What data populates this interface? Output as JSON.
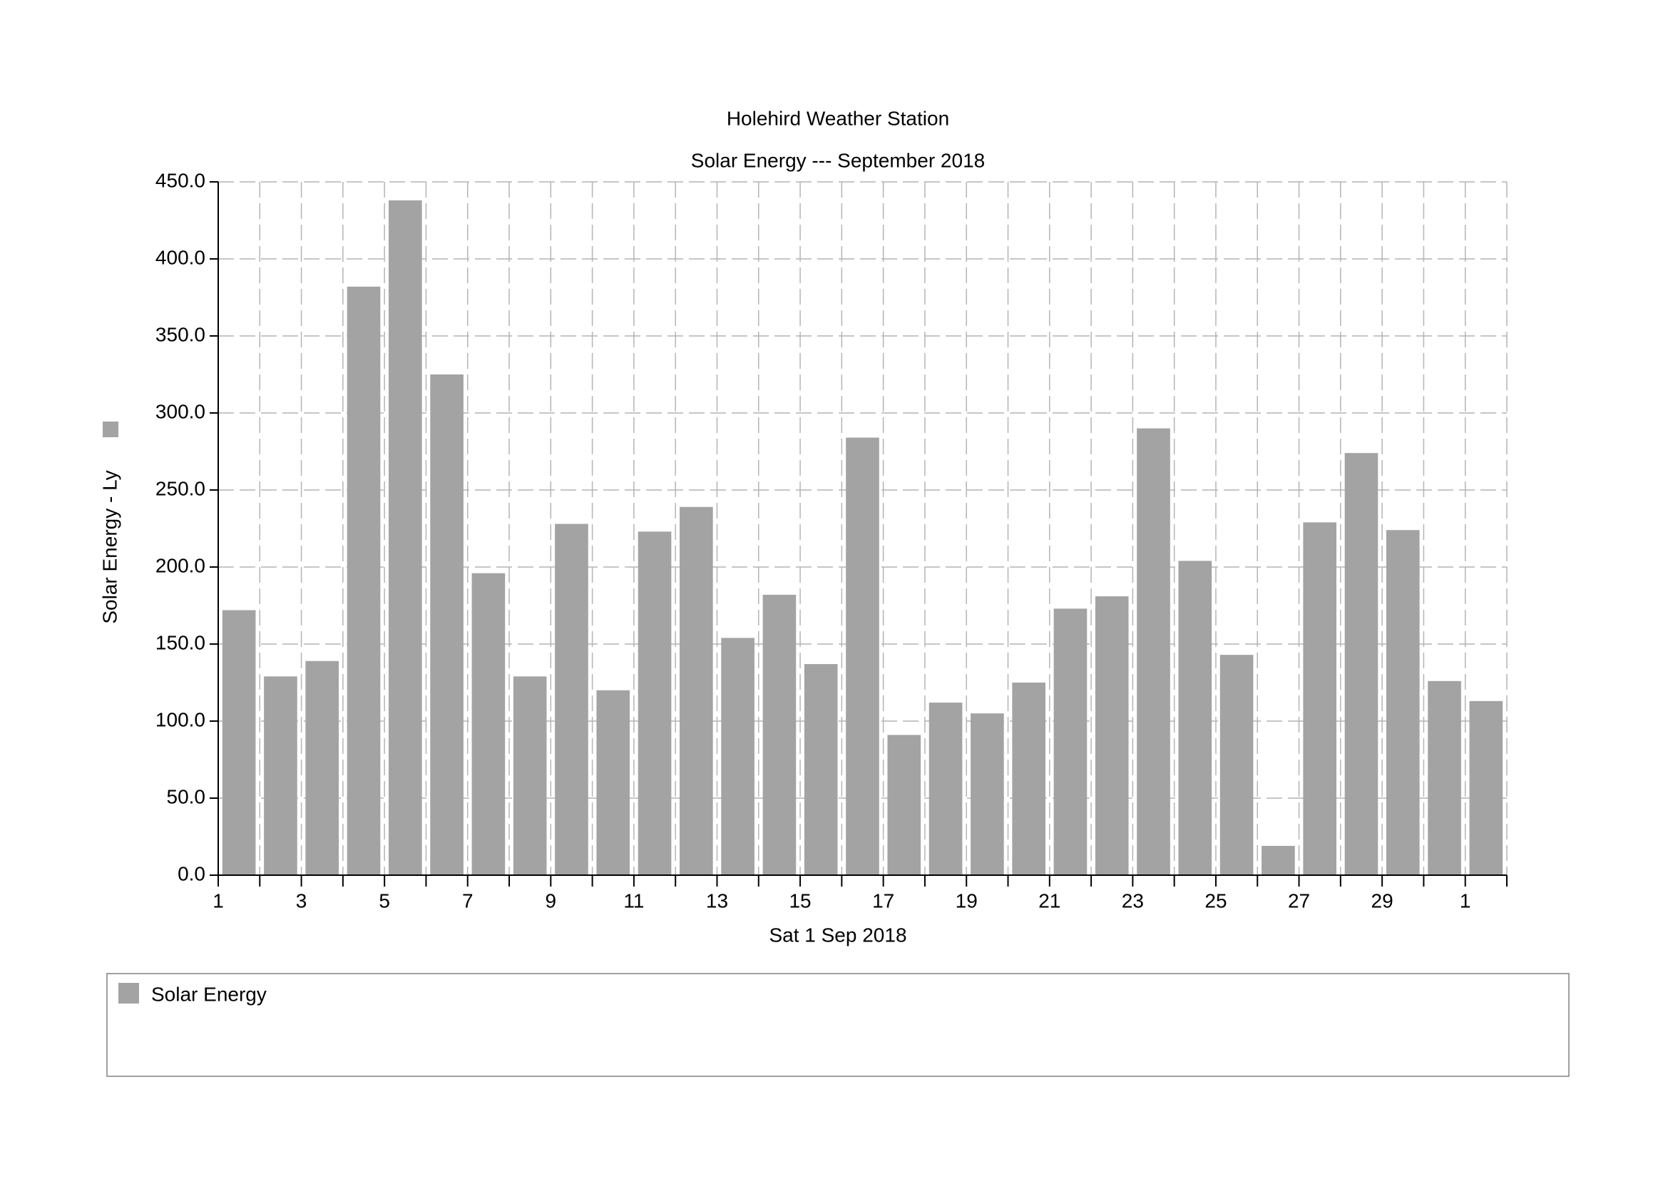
{
  "chart_data": {
    "type": "bar",
    "title": "Holehird Weather Station",
    "subtitle": "Solar Energy --- September 2018",
    "x_label": "Sat 1 Sep 2018",
    "y_label": "Solar Energy - Ly",
    "categories": [
      "1",
      null,
      "3",
      null,
      "5",
      null,
      "7",
      null,
      "9",
      null,
      "11",
      null,
      "13",
      null,
      "15",
      null,
      "17",
      null,
      "19",
      null,
      "21",
      null,
      "23",
      null,
      "25",
      null,
      "27",
      null,
      "29",
      null,
      "1"
    ],
    "series": [
      {
        "name": "Solar Energy",
        "color": "#a3a3a3",
        "values": [
          172,
          129,
          139,
          382,
          438,
          325,
          196,
          129,
          228,
          120,
          223,
          239,
          154,
          182,
          137,
          284,
          91,
          112,
          105,
          125,
          173,
          181,
          290,
          204,
          143,
          19,
          229,
          274,
          224,
          126,
          113
        ]
      }
    ],
    "ylim": [
      0,
      450
    ],
    "yticks": [
      {
        "value": 0,
        "label": "0.0"
      },
      {
        "value": 50,
        "label": "50.0"
      },
      {
        "value": 100,
        "label": "100.0"
      },
      {
        "value": 150,
        "label": "150.0"
      },
      {
        "value": 200,
        "label": "200.0"
      },
      {
        "value": 250,
        "label": "250.0"
      },
      {
        "value": 300,
        "label": "300.0"
      },
      {
        "value": 350,
        "label": "350.0"
      },
      {
        "value": 400,
        "label": "400.0"
      },
      {
        "value": 450,
        "label": "450.0"
      }
    ],
    "grid": true,
    "legend": "bottom"
  }
}
